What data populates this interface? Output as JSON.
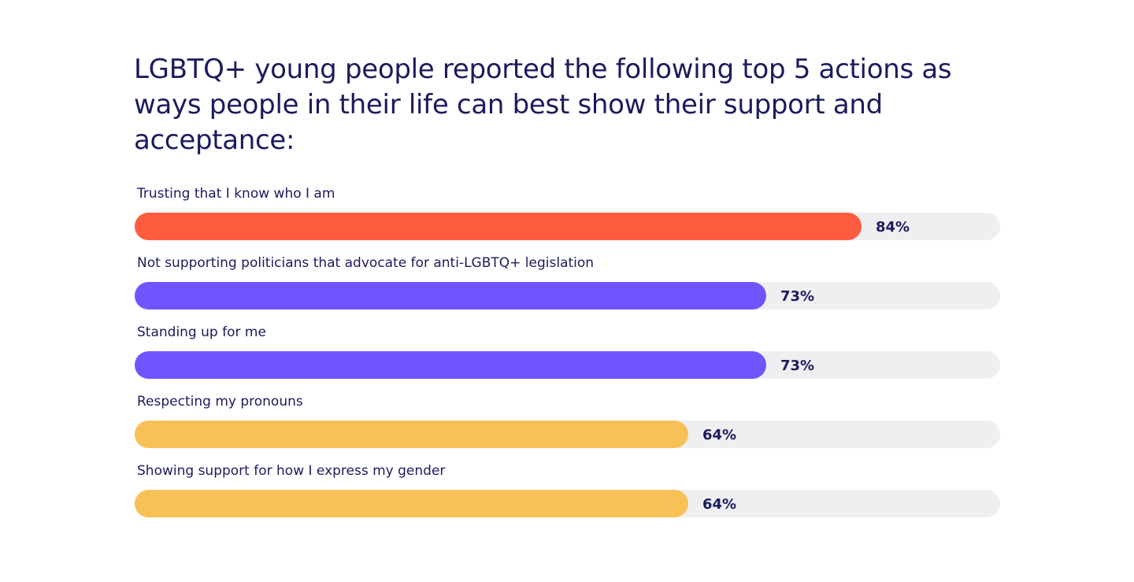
{
  "chart_data": {
    "type": "bar",
    "orientation": "horizontal",
    "title": "LGBTQ+ young people reported the following top 5 actions as ways people in their life can best show their support and acceptance:",
    "xlim": [
      0,
      100
    ],
    "grid": false,
    "categories": [
      "Trusting that I know who I am",
      "Not supporting politicians that advocate for anti-LGBTQ+ legislation",
      "Standing up for me",
      "Respecting my pronouns",
      "Showing support for how I express my gender"
    ],
    "values": [
      84,
      73,
      73,
      64,
      64
    ],
    "value_labels": [
      "84%",
      "73%",
      "73%",
      "64%",
      "64%"
    ],
    "bar_colors": [
      "#ff5b3f",
      "#7254ff",
      "#7254ff",
      "#f8c157",
      "#f8c157"
    ],
    "track_color": "#efeff1"
  }
}
